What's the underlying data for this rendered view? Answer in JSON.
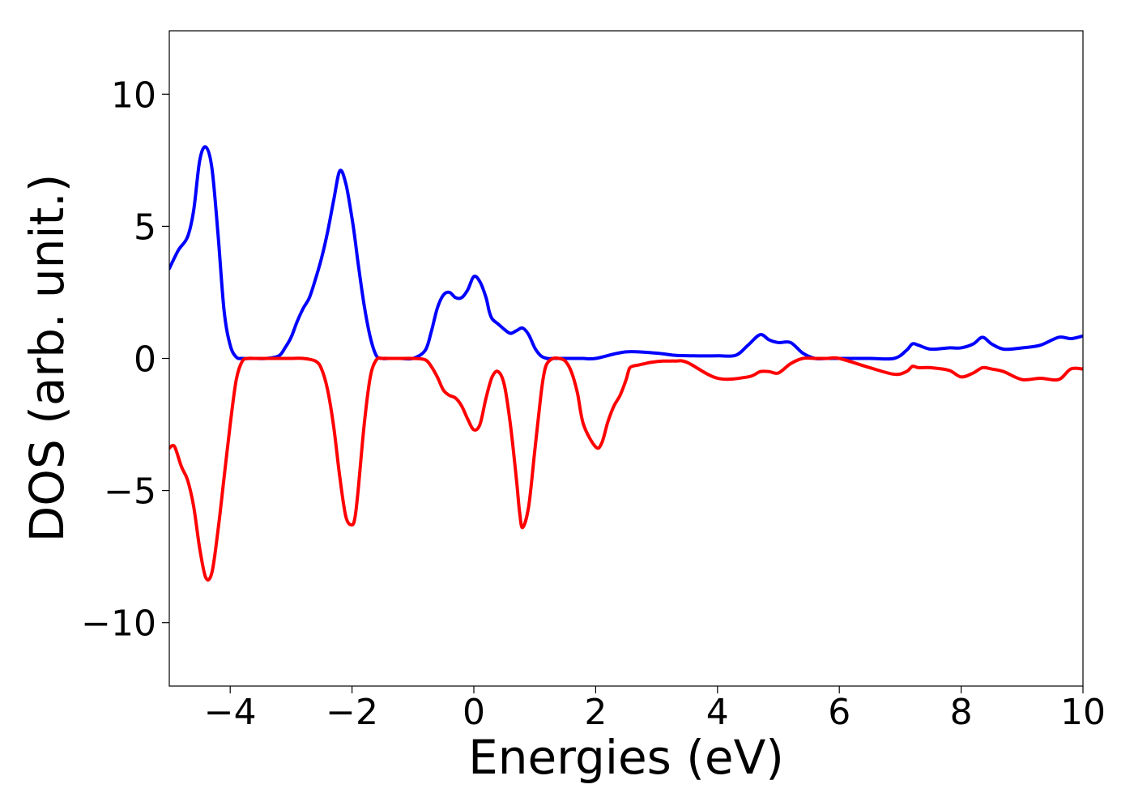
{
  "chart_data": {
    "type": "line",
    "title": "",
    "xlabel": "Energies (eV)",
    "ylabel": "DOS (arb. unit.)",
    "xlim": [
      -5,
      10
    ],
    "ylim": [
      -12.4,
      12.4
    ],
    "xticks": [
      -4,
      -2,
      0,
      2,
      4,
      6,
      8,
      10
    ],
    "xtick_labels": [
      "−4",
      "−2",
      "0",
      "2",
      "4",
      "6",
      "8",
      "10"
    ],
    "yticks": [
      10,
      5,
      0,
      -5,
      -10
    ],
    "ytick_labels": [
      "10",
      "5",
      "0",
      "−5",
      "−10"
    ],
    "grid": false,
    "legend": "none",
    "series": [
      {
        "color": "#0000ff",
        "x": [
          -5.0,
          -4.85,
          -4.7,
          -4.6,
          -4.5,
          -4.4,
          -4.3,
          -4.2,
          -4.1,
          -4.0,
          -3.9,
          -3.8,
          -3.6,
          -3.4,
          -3.2,
          -3.1,
          -3.0,
          -2.9,
          -2.8,
          -2.7,
          -2.6,
          -2.5,
          -2.4,
          -2.3,
          -2.2,
          -2.1,
          -2.0,
          -1.95,
          -1.9,
          -1.8,
          -1.7,
          -1.6,
          -1.5,
          -1.4,
          -1.3,
          -1.2,
          -1.0,
          -0.8,
          -0.7,
          -0.6,
          -0.5,
          -0.4,
          -0.3,
          -0.2,
          -0.1,
          0.0,
          0.1,
          0.2,
          0.25,
          0.3,
          0.4,
          0.5,
          0.6,
          0.7,
          0.8,
          0.9,
          1.0,
          1.1,
          1.2,
          1.3,
          1.4,
          1.5,
          1.6,
          1.7,
          1.8,
          2.0,
          2.5,
          3.0,
          3.3,
          3.6,
          4.0,
          4.3,
          4.5,
          4.7,
          4.85,
          5.0,
          5.2,
          5.4,
          5.6,
          5.8,
          6.0,
          6.5,
          6.9,
          7.1,
          7.2,
          7.3,
          7.5,
          7.8,
          8.0,
          8.2,
          8.35,
          8.5,
          8.7,
          9.0,
          9.3,
          9.6,
          9.8,
          10.0
        ],
        "y": [
          3.4,
          4.1,
          4.6,
          5.6,
          7.5,
          8.0,
          7.2,
          4.7,
          1.8,
          0.5,
          0.05,
          0.0,
          0.0,
          0.0,
          0.1,
          0.4,
          0.8,
          1.4,
          1.9,
          2.3,
          3.0,
          3.8,
          4.8,
          6.0,
          7.1,
          6.6,
          5.3,
          4.5,
          3.6,
          2.0,
          0.8,
          0.1,
          0.0,
          0.0,
          0.0,
          0.0,
          0.0,
          0.3,
          1.0,
          1.9,
          2.4,
          2.5,
          2.3,
          2.3,
          2.6,
          3.1,
          2.9,
          2.3,
          1.8,
          1.5,
          1.3,
          1.1,
          0.95,
          1.05,
          1.15,
          0.9,
          0.4,
          0.1,
          0.0,
          0.0,
          0.0,
          0.0,
          0.0,
          0.0,
          0.0,
          0.0,
          0.25,
          0.2,
          0.12,
          0.1,
          0.1,
          0.12,
          0.5,
          0.9,
          0.7,
          0.6,
          0.6,
          0.2,
          0.0,
          0.0,
          0.0,
          0.0,
          0.0,
          0.3,
          0.55,
          0.5,
          0.35,
          0.4,
          0.4,
          0.55,
          0.8,
          0.55,
          0.35,
          0.4,
          0.5,
          0.8,
          0.75,
          0.85
        ]
      },
      {
        "color": "#ff0000",
        "x": [
          -5.0,
          -4.95,
          -4.9,
          -4.8,
          -4.7,
          -4.6,
          -4.5,
          -4.4,
          -4.3,
          -4.2,
          -4.1,
          -4.0,
          -3.9,
          -3.8,
          -3.7,
          -3.6,
          -3.4,
          -3.2,
          -3.0,
          -2.8,
          -2.6,
          -2.5,
          -2.4,
          -2.3,
          -2.2,
          -2.1,
          -2.0,
          -1.95,
          -1.9,
          -1.8,
          -1.7,
          -1.6,
          -1.5,
          -1.4,
          -1.2,
          -1.0,
          -0.8,
          -0.7,
          -0.6,
          -0.5,
          -0.4,
          -0.3,
          -0.2,
          -0.1,
          0.0,
          0.1,
          0.2,
          0.3,
          0.4,
          0.5,
          0.6,
          0.7,
          0.75,
          0.8,
          0.9,
          1.0,
          1.1,
          1.15,
          1.2,
          1.3,
          1.4,
          1.5,
          1.6,
          1.7,
          1.8,
          2.0,
          2.1,
          2.2,
          2.3,
          2.4,
          2.5,
          2.55,
          2.6,
          2.7,
          2.8,
          2.9,
          3.0,
          3.1,
          3.2,
          3.3,
          3.5,
          4.0,
          4.5,
          4.7,
          4.85,
          5.0,
          5.2,
          5.4,
          5.6,
          5.8,
          6.0,
          6.5,
          6.9,
          7.1,
          7.2,
          7.3,
          7.5,
          7.8,
          8.0,
          8.2,
          8.35,
          8.5,
          8.7,
          9.0,
          9.3,
          9.6,
          9.8,
          10.0
        ],
        "y": [
          -3.4,
          -3.3,
          -3.4,
          -4.1,
          -4.6,
          -5.6,
          -7.2,
          -8.3,
          -8.1,
          -6.5,
          -4.5,
          -2.5,
          -0.8,
          -0.1,
          0.0,
          0.0,
          0.0,
          0.0,
          0.0,
          0.0,
          -0.1,
          -0.4,
          -1.2,
          -2.6,
          -4.5,
          -6.0,
          -6.3,
          -6.0,
          -5.0,
          -2.5,
          -0.7,
          -0.05,
          0.0,
          0.0,
          0.0,
          0.0,
          -0.05,
          -0.3,
          -0.7,
          -1.2,
          -1.4,
          -1.5,
          -1.8,
          -2.3,
          -2.7,
          -2.5,
          -1.5,
          -0.7,
          -0.5,
          -1.0,
          -2.5,
          -4.6,
          -5.8,
          -6.4,
          -5.6,
          -3.5,
          -1.4,
          -0.6,
          -0.2,
          0.0,
          0.0,
          -0.1,
          -0.5,
          -1.3,
          -2.5,
          -3.35,
          -3.2,
          -2.4,
          -1.8,
          -1.4,
          -0.8,
          -0.4,
          -0.3,
          -0.25,
          -0.2,
          -0.15,
          -0.12,
          -0.1,
          -0.1,
          -0.1,
          -0.15,
          -0.75,
          -0.7,
          -0.5,
          -0.5,
          -0.55,
          -0.2,
          0.0,
          0.0,
          0.0,
          0.0,
          -0.35,
          -0.6,
          -0.5,
          -0.3,
          -0.35,
          -0.35,
          -0.45,
          -0.7,
          -0.55,
          -0.35,
          -0.4,
          -0.5,
          -0.8,
          -0.75,
          -0.8,
          -0.4,
          -0.4
        ]
      }
    ]
  }
}
